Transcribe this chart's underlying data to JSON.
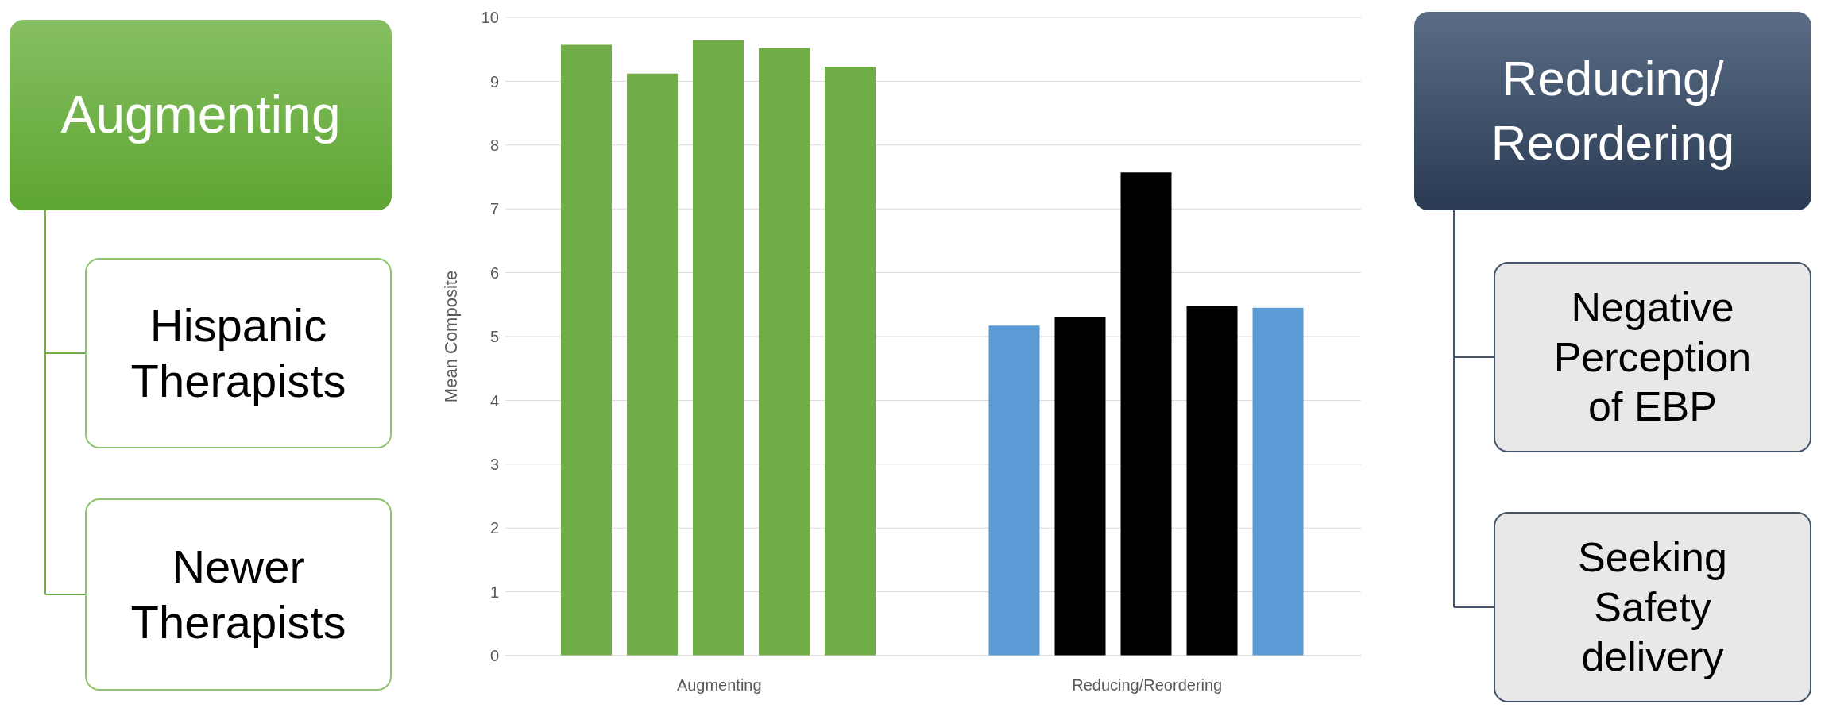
{
  "chart_data": [
    {
      "type": "other",
      "title": "Augmenting",
      "annotations": [
        "Hispanic Therapists",
        "Newer Therapists"
      ]
    },
    {
      "type": "bar",
      "categories": [
        "Augmenting",
        "Reducing/Reordering"
      ],
      "ylabel": "Mean Composite",
      "ylim": [
        0,
        10
      ],
      "yticks": [
        0,
        1,
        2,
        3,
        4,
        5,
        6,
        7,
        8,
        9,
        10
      ],
      "grid": "y",
      "series": [
        {
          "colors": [
            "#70ad47",
            "#5b9bd5"
          ],
          "values": [
            9.57,
            5.17
          ]
        },
        {
          "colors": [
            "#70ad47",
            "#000000"
          ],
          "values": [
            9.12,
            5.3
          ]
        },
        {
          "colors": [
            "#70ad47",
            "#000000"
          ],
          "values": [
            9.64,
            7.57
          ]
        },
        {
          "colors": [
            "#70ad47",
            "#000000"
          ],
          "values": [
            9.52,
            5.48
          ]
        },
        {
          "colors": [
            "#70ad47",
            "#5b9bd5"
          ],
          "values": [
            9.23,
            5.45
          ]
        }
      ]
    },
    {
      "type": "other",
      "title": "Reducing/ Reordering",
      "annotations": [
        "Negative Perception of EBP",
        "Seeking Safety delivery"
      ]
    }
  ]
}
